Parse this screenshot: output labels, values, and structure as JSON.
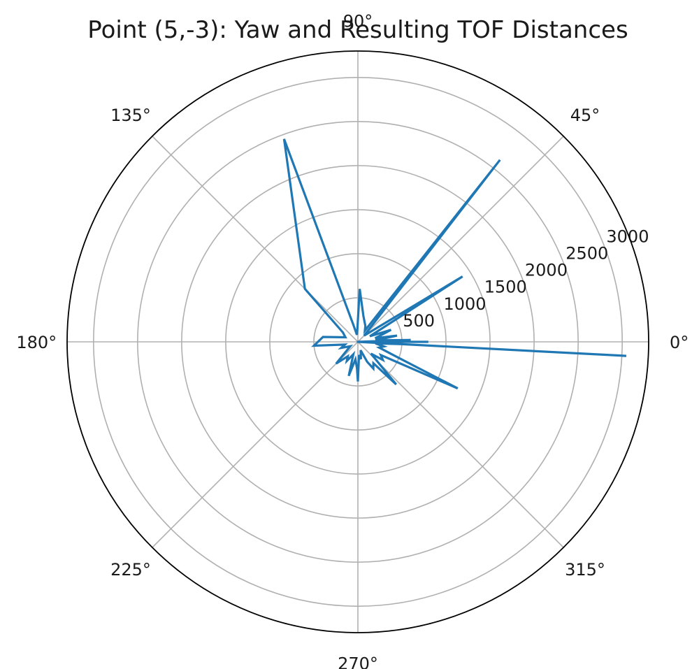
{
  "chart_data": {
    "type": "polar-line",
    "title": "Point (5,-3): Yaw and Resulting TOF Distances",
    "angle_ticks": [
      "0°",
      "45°",
      "90°",
      "135°",
      "180°",
      "225°",
      "270°",
      "315°"
    ],
    "radial_ticks": [
      500,
      1000,
      1500,
      2000,
      2500,
      3000
    ],
    "radial_tick_labels": [
      "500",
      "1000",
      "1500",
      "2000",
      "2500",
      "3000"
    ],
    "rlim": [
      0,
      3300
    ],
    "grid": true,
    "series_color": "#1f77b4",
    "series": [
      {
        "angle_deg": [
          0,
          -3,
          0,
          0,
          0,
          2,
          5,
          9,
          12,
          15,
          20,
          25,
          32,
          38,
          45,
          52,
          58,
          65,
          78,
          88,
          92,
          98,
          105,
          110,
          135,
          148,
          160,
          172,
          185,
          192,
          200,
          210,
          225,
          235,
          240,
          250,
          255,
          262,
          268,
          270,
          275,
          280,
          288,
          295,
          300,
          306,
          312,
          318,
          324,
          330,
          335,
          340,
          345,
          350,
          355,
          357,
          360
        ],
        "r": [
          0,
          3050,
          0,
          800,
          0,
          600,
          200,
          450,
          200,
          250,
          400,
          150,
          1400,
          200,
          100,
          2620,
          150,
          200,
          300,
          600,
          150,
          80,
          200,
          2450,
          850,
          200,
          150,
          400,
          500,
          150,
          200,
          100,
          350,
          200,
          250,
          150,
          400,
          200,
          300,
          450,
          150,
          200,
          100,
          250,
          350,
          300,
          650,
          200,
          350,
          300,
          1250,
          400,
          250,
          300,
          200,
          500,
          0
        ]
      }
    ]
  }
}
